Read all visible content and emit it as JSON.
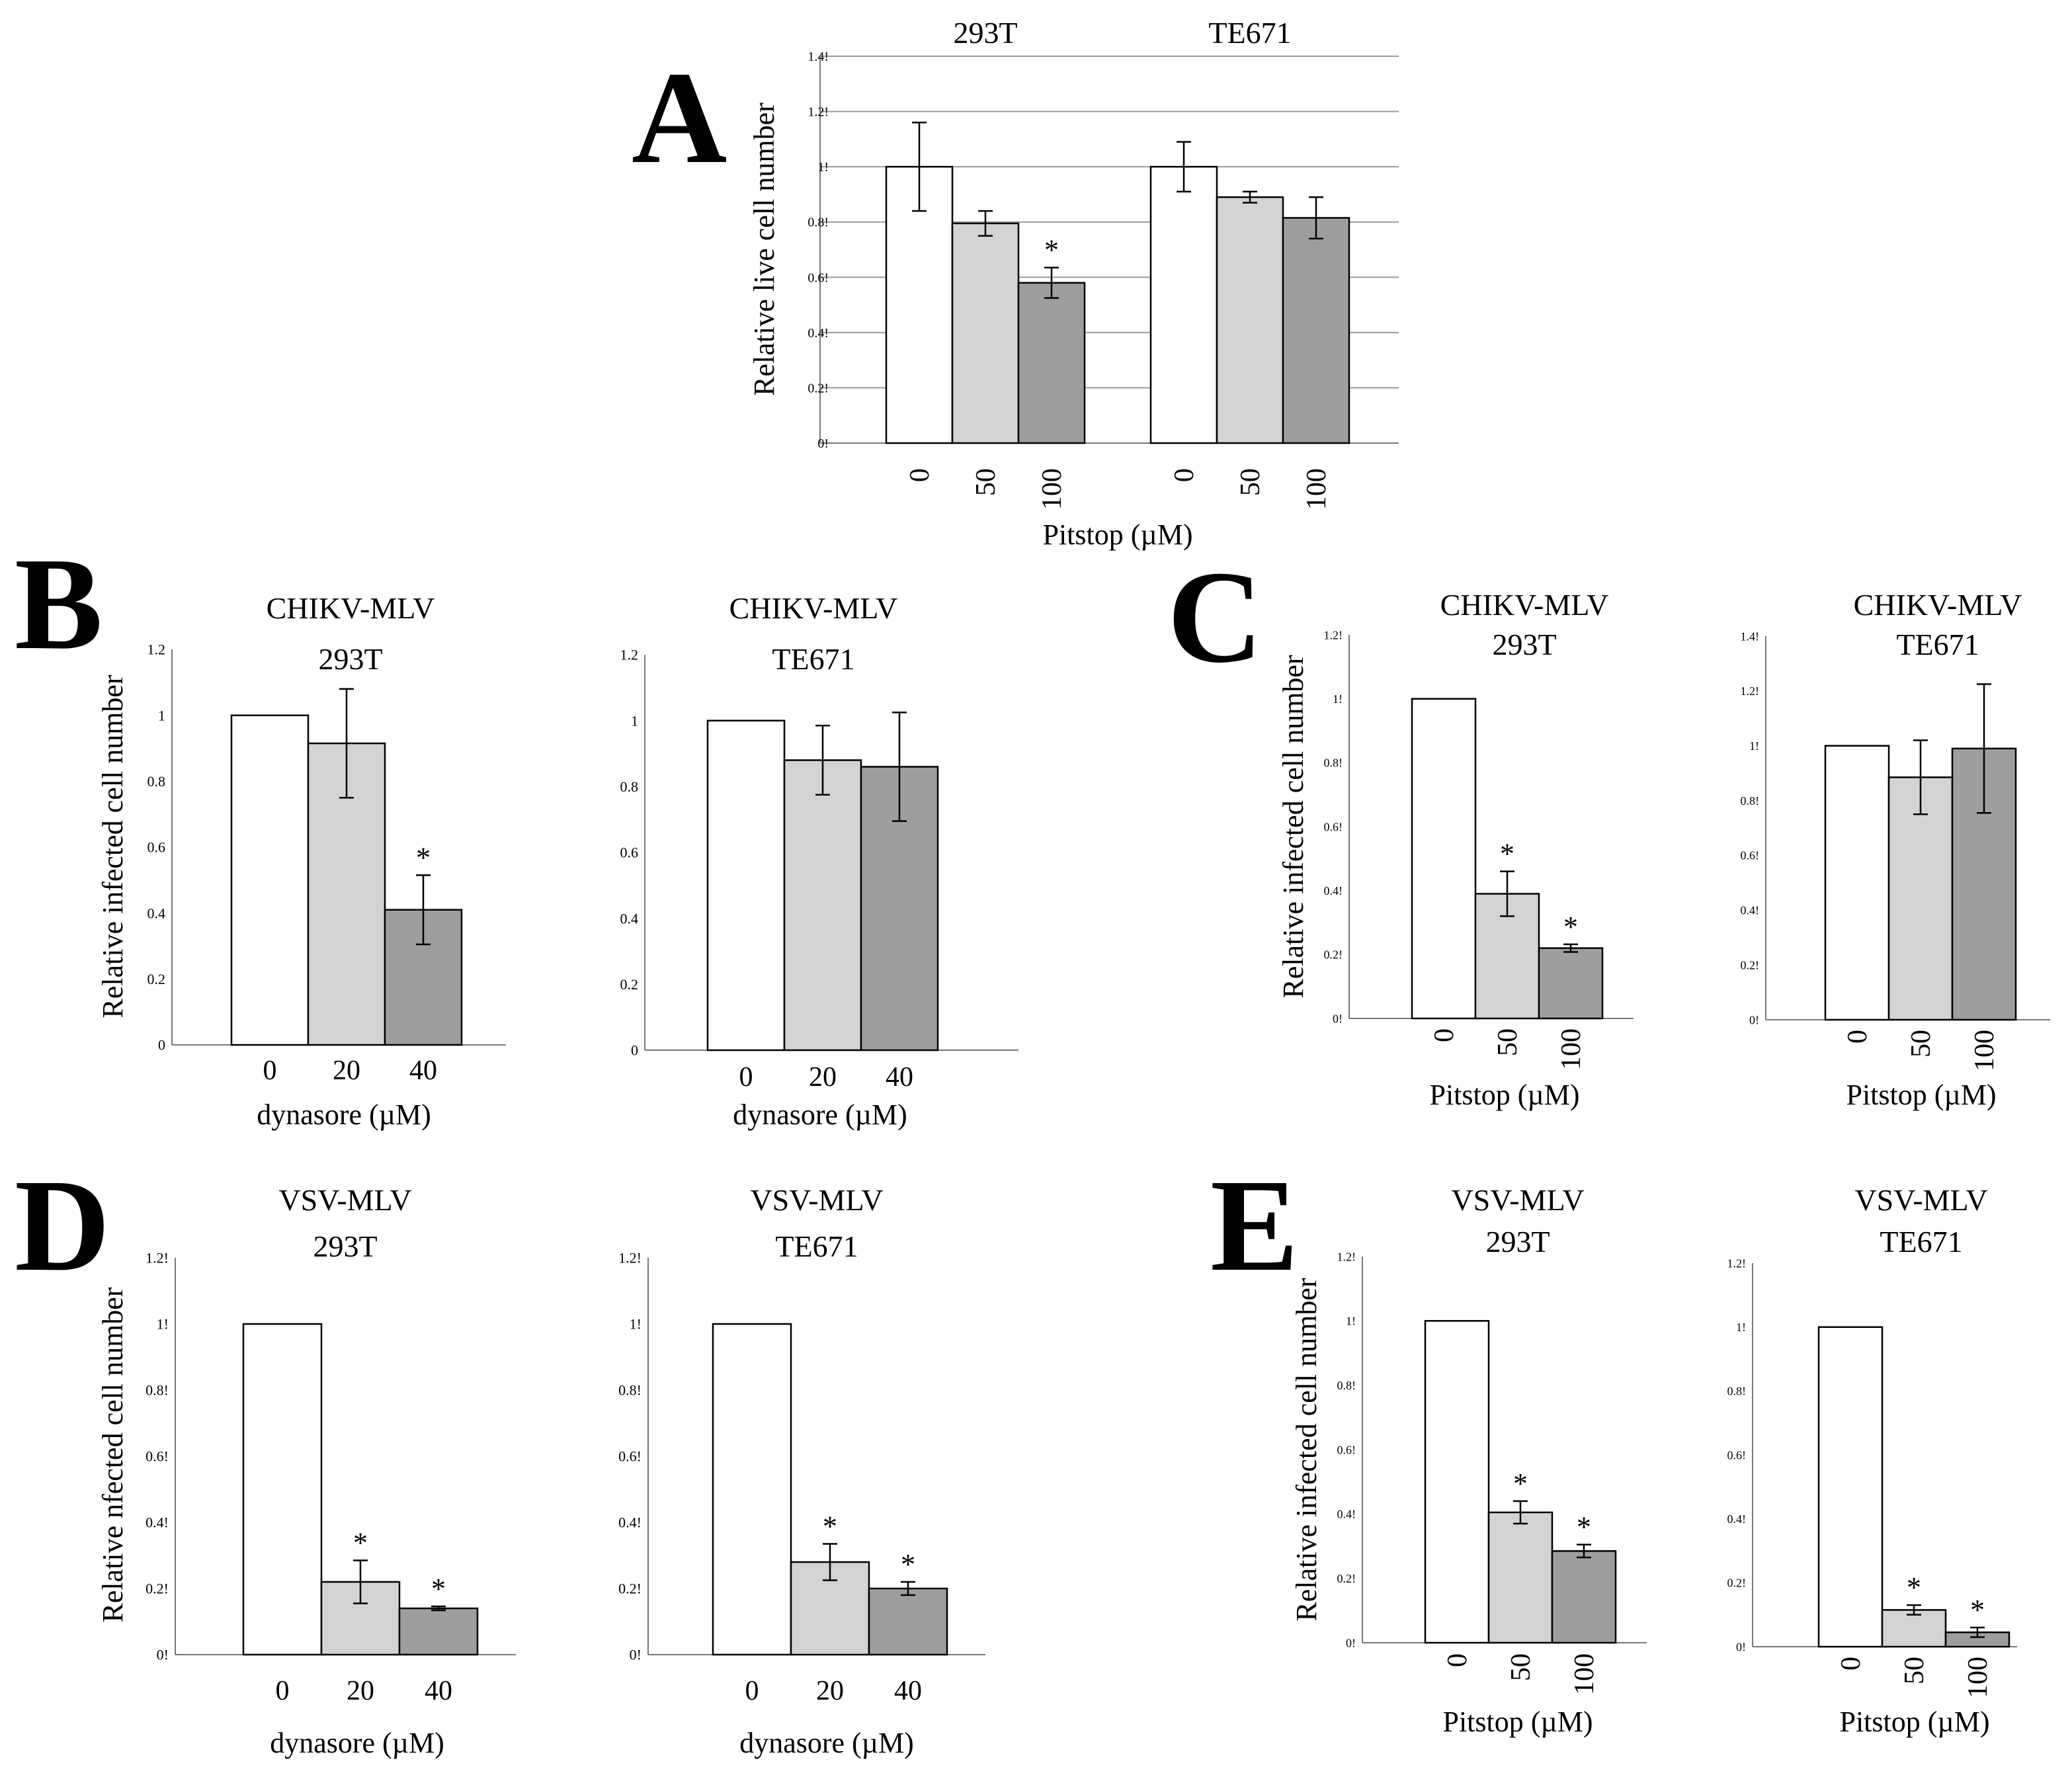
{
  "chart_data": [
    {
      "id": "A",
      "panel_label": "A",
      "type": "bar",
      "group_titles": [
        "293T",
        "TE671"
      ],
      "ylabel": "Relative live cell number",
      "xlabel": "Pitstop (µM)",
      "categories": [
        "0",
        "50",
        "100"
      ],
      "ylim": [
        0,
        1.4
      ],
      "yticks": [
        0,
        0.2,
        0.4,
        0.6,
        0.8,
        1,
        1.2,
        1.4
      ],
      "ytick_labels": [
        "0!",
        "0.2!",
        "0.4!",
        "0.6!",
        "0.8!",
        "1!",
        "1.2!",
        "1.4!"
      ],
      "grid": true,
      "groups": [
        {
          "name": "293T",
          "values": [
            1.0,
            0.795,
            0.58
          ],
          "errors": [
            0.16,
            0.045,
            0.055
          ],
          "significant": [
            false,
            false,
            true
          ]
        },
        {
          "name": "TE671",
          "values": [
            1.0,
            0.89,
            0.815
          ],
          "errors": [
            0.09,
            0.02,
            0.075
          ],
          "significant": [
            false,
            false,
            false
          ]
        }
      ]
    },
    {
      "id": "B1",
      "panel_label": "B",
      "type": "bar",
      "title_lines": [
        "CHIKV-MLV",
        "293T"
      ],
      "ylabel": "Relative infected cell number",
      "xlabel": "dynasore (µM)",
      "categories": [
        "0",
        "20",
        "40"
      ],
      "ylim": [
        0,
        1.2
      ],
      "yticks": [
        0,
        0.2,
        0.4,
        0.6,
        0.8,
        1,
        1.2
      ],
      "ytick_labels": [
        "0",
        "0.2",
        "0.4",
        "0.6",
        "0.8",
        "1",
        "1.2"
      ],
      "grid": false,
      "values": [
        1.0,
        0.915,
        0.41
      ],
      "errors": [
        0,
        0.165,
        0.105
      ],
      "significant": [
        false,
        false,
        true
      ]
    },
    {
      "id": "B2",
      "type": "bar",
      "title_lines": [
        "CHIKV-MLV",
        "TE671"
      ],
      "xlabel": "dynasore (µM)",
      "categories": [
        "0",
        "20",
        "40"
      ],
      "ylim": [
        0,
        1.2
      ],
      "yticks": [
        0,
        0.2,
        0.4,
        0.6,
        0.8,
        1,
        1.2
      ],
      "ytick_labels": [
        "0",
        "0.2",
        "0.4",
        "0.6",
        "0.8",
        "1",
        "1.2"
      ],
      "grid": false,
      "values": [
        1.0,
        0.88,
        0.86
      ],
      "errors": [
        0,
        0.105,
        0.165
      ],
      "significant": [
        false,
        false,
        false
      ]
    },
    {
      "id": "C1",
      "panel_label": "C",
      "type": "bar",
      "title_lines": [
        "CHIKV-MLV",
        "293T"
      ],
      "ylabel": "Relative infected cell number",
      "xlabel": "Pitstop (µM)",
      "categories": [
        "0",
        "50",
        "100"
      ],
      "ylim": [
        0,
        1.2
      ],
      "yticks": [
        0,
        0.2,
        0.4,
        0.6,
        0.8,
        1,
        1.2
      ],
      "ytick_labels": [
        "0!",
        "0.2!",
        "0.4!",
        "0.6!",
        "0.8!",
        "1!",
        "1.2!"
      ],
      "grid": false,
      "values": [
        1.0,
        0.39,
        0.22
      ],
      "errors": [
        0,
        0.07,
        0.012
      ],
      "significant": [
        false,
        true,
        true
      ]
    },
    {
      "id": "C2",
      "type": "bar",
      "title_lines": [
        "CHIKV-MLV",
        "TE671"
      ],
      "xlabel": "Pitstop (µM)",
      "categories": [
        "0",
        "50",
        "100"
      ],
      "ylim": [
        0,
        1.4
      ],
      "yticks": [
        0,
        0.2,
        0.4,
        0.6,
        0.8,
        1,
        1.2,
        1.4
      ],
      "ytick_labels": [
        "0!",
        "0.2!",
        "0.4!",
        "0.6!",
        "0.8!",
        "1!",
        "1.2!",
        "1.4!"
      ],
      "grid": false,
      "values": [
        1.0,
        0.885,
        0.99
      ],
      "errors": [
        0,
        0.135,
        0.235
      ],
      "significant": [
        false,
        false,
        false
      ]
    },
    {
      "id": "D1",
      "panel_label": "D",
      "type": "bar",
      "title_lines": [
        "VSV-MLV",
        "293T"
      ],
      "ylabel": "Relative  nfected cell number",
      "xlabel": "dynasore (µM)",
      "categories": [
        "0",
        "20",
        "40"
      ],
      "ylim": [
        0,
        1.2
      ],
      "yticks": [
        0,
        0.2,
        0.4,
        0.6,
        0.8,
        1,
        1.2
      ],
      "ytick_labels": [
        "0!",
        "0.2!",
        "0.4!",
        "0.6!",
        "0.8!",
        "1!",
        "1.2!"
      ],
      "grid": false,
      "values": [
        1.0,
        0.22,
        0.14
      ],
      "errors": [
        0,
        0.065,
        0.006
      ],
      "significant": [
        false,
        true,
        true
      ]
    },
    {
      "id": "D2",
      "type": "bar",
      "title_lines": [
        "VSV-MLV",
        "TE671"
      ],
      "xlabel": "dynasore (µM)",
      "categories": [
        "0",
        "20",
        "40"
      ],
      "ylim": [
        0,
        1.2
      ],
      "yticks": [
        0,
        0.2,
        0.4,
        0.6,
        0.8,
        1,
        1.2
      ],
      "ytick_labels": [
        "0!",
        "0.2!",
        "0.4!",
        "0.6!",
        "0.8!",
        "1!",
        "1.2!"
      ],
      "grid": false,
      "values": [
        1.0,
        0.28,
        0.2
      ],
      "errors": [
        0,
        0.055,
        0.02
      ],
      "significant": [
        false,
        true,
        true
      ]
    },
    {
      "id": "E1",
      "panel_label": "E",
      "type": "bar",
      "title_lines": [
        "VSV-MLV",
        "293T"
      ],
      "ylabel": "Relative infected cell number",
      "xlabel": "Pitstop (µM)",
      "categories": [
        "0",
        "50",
        "100"
      ],
      "ylim": [
        0,
        1.2
      ],
      "yticks": [
        0,
        0.2,
        0.4,
        0.6,
        0.8,
        1,
        1.2
      ],
      "ytick_labels": [
        "0!",
        "0.2!",
        "0.4!",
        "0.6!",
        "0.8!",
        "1!",
        "1.2!"
      ],
      "grid": false,
      "values": [
        1.0,
        0.405,
        0.285
      ],
      "errors": [
        0,
        0.035,
        0.02
      ],
      "significant": [
        false,
        true,
        true
      ]
    },
    {
      "id": "E2",
      "type": "bar",
      "title_lines": [
        "VSV-MLV",
        "TE671"
      ],
      "xlabel": "Pitstop (µM)",
      "categories": [
        "0",
        "50",
        "100"
      ],
      "ylim": [
        0,
        1.2
      ],
      "yticks": [
        0,
        0.2,
        0.4,
        0.6,
        0.8,
        1,
        1.2
      ],
      "ytick_labels": [
        "0!",
        "0.2!",
        "0.4!",
        "0.6!",
        "0.8!",
        "1!",
        "1.2!"
      ],
      "grid": false,
      "values": [
        1.0,
        0.115,
        0.045
      ],
      "errors": [
        0,
        0.015,
        0.015
      ],
      "significant": [
        false,
        true,
        true
      ]
    }
  ],
  "significance_marker": "*",
  "colors": {
    "bar_fills": [
      "#ffffff",
      "#d3d3d3",
      "#9e9e9e"
    ],
    "stroke": "#000000",
    "gridline": "#9a9a9a",
    "axis": "#777777"
  }
}
